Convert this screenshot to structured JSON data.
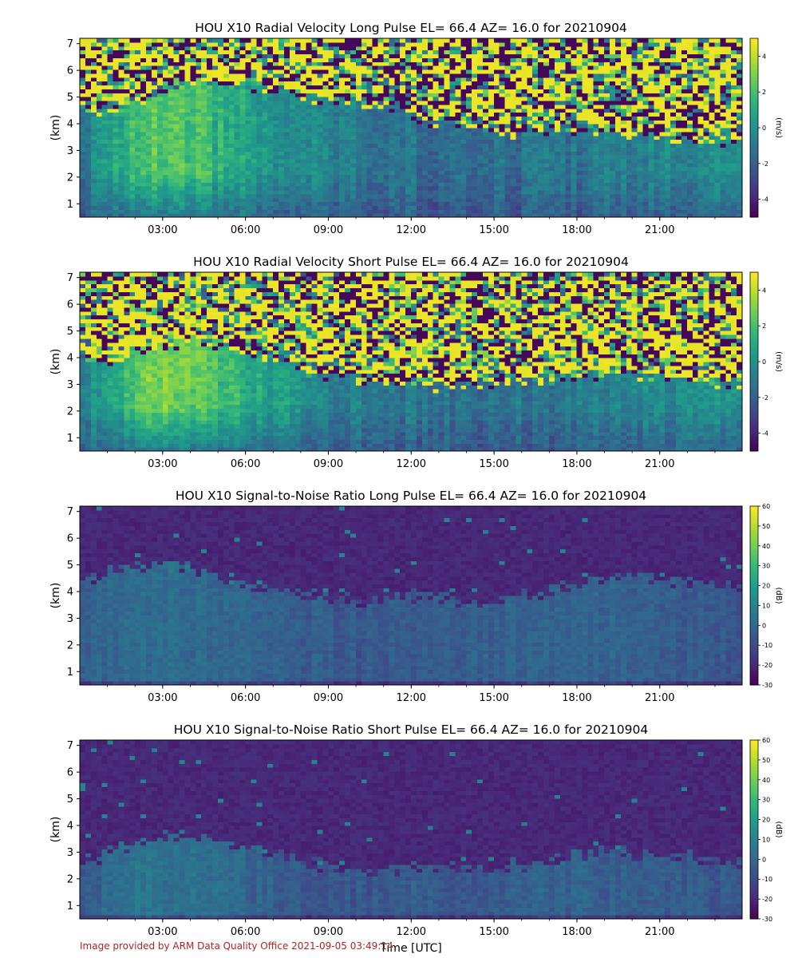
{
  "footer": "Image provided by ARM Data Quality Office 2021-09-05 03:49:14",
  "xlabel": "Time [UTC]",
  "chart_data": [
    {
      "type": "heatmap",
      "title": "HOU X10 Radial Velocity Long Pulse EL= 66.4 AZ= 16.0 for 20210904",
      "ylabel": "(km)",
      "colorbar_label": "(m/s)",
      "colormap": "viridis",
      "clim": [
        -5,
        5
      ],
      "colorbar_ticks": [
        -4,
        -2,
        0,
        2,
        4
      ],
      "xlim": [
        "00:00",
        "23:59"
      ],
      "ylim": [
        0.5,
        7.2
      ],
      "xticks": [
        "03:00",
        "06:00",
        "09:00",
        "12:00",
        "15:00",
        "18:00",
        "21:00"
      ],
      "yticks": [
        1,
        2,
        3,
        4,
        5,
        6,
        7
      ],
      "pattern": "velocity",
      "upper_boundary_km": [
        4.6,
        4.4,
        4.9,
        5.4,
        5.6,
        5.6,
        5.4,
        5.2,
        5.0,
        4.9,
        4.7,
        4.6,
        4.1,
        4.0,
        3.8,
        3.7,
        3.7,
        3.8,
        3.7,
        3.6,
        3.5,
        3.5,
        3.4,
        3.3
      ],
      "field_level": [
        -1.0,
        0.5,
        2.0,
        2.5,
        2.2,
        1.2,
        0.6,
        0.2,
        -0.2,
        -0.6,
        -1.0,
        -1.2,
        -1.3,
        -1.4,
        -1.5,
        -1.4,
        -1.3,
        -1.2,
        -1.0,
        -0.8,
        -0.6,
        -0.4,
        -0.2,
        0.0
      ]
    },
    {
      "type": "heatmap",
      "title": "HOU X10 Radial Velocity Short Pulse EL= 66.4 AZ= 16.0 for 20210904",
      "ylabel": "(km)",
      "colorbar_label": "(m/s)",
      "colormap": "viridis",
      "clim": [
        -5,
        5
      ],
      "colorbar_ticks": [
        -4,
        -2,
        0,
        2,
        4
      ],
      "xlim": [
        "00:00",
        "23:59"
      ],
      "ylim": [
        0.5,
        7.2
      ],
      "xticks": [
        "03:00",
        "06:00",
        "09:00",
        "12:00",
        "15:00",
        "18:00",
        "21:00"
      ],
      "yticks": [
        1,
        2,
        3,
        4,
        5,
        6,
        7
      ],
      "pattern": "velocity",
      "upper_boundary_km": [
        3.8,
        3.9,
        4.2,
        4.5,
        4.6,
        4.4,
        4.1,
        3.8,
        3.5,
        3.3,
        3.2,
        3.1,
        3.0,
        3.0,
        3.0,
        3.1,
        3.2,
        3.3,
        3.4,
        3.4,
        3.3,
        3.2,
        3.1,
        3.0
      ],
      "field_level": [
        -0.5,
        1.0,
        2.5,
        3.0,
        2.8,
        1.8,
        1.0,
        0.4,
        0.0,
        -0.5,
        -0.8,
        -1.0,
        -1.1,
        -1.2,
        -1.2,
        -1.1,
        -1.0,
        -0.9,
        -0.8,
        -0.6,
        -0.4,
        -0.2,
        0.0,
        0.2
      ]
    },
    {
      "type": "heatmap",
      "title": "HOU X10 Signal-to-Noise Ratio Long Pulse EL= 66.4 AZ= 16.0 for 20210904",
      "ylabel": "(km)",
      "colorbar_label": "(dB)",
      "colormap": "viridis",
      "clim": [
        -30,
        60
      ],
      "colorbar_ticks": [
        -30,
        -20,
        -10,
        0,
        10,
        20,
        30,
        40,
        50,
        60
      ],
      "xlim": [
        "00:00",
        "23:59"
      ],
      "ylim": [
        0.5,
        7.2
      ],
      "xticks": [
        "03:00",
        "06:00",
        "09:00",
        "12:00",
        "15:00",
        "18:00",
        "21:00"
      ],
      "yticks": [
        1,
        2,
        3,
        4,
        5,
        6,
        7
      ],
      "pattern": "snr",
      "upper_boundary_km": [
        4.5,
        4.8,
        5.0,
        5.0,
        4.8,
        4.5,
        4.2,
        4.0,
        3.8,
        3.7,
        3.6,
        3.8,
        4.0,
        3.7,
        3.6,
        3.8,
        4.0,
        4.2,
        4.5,
        4.6,
        4.5,
        4.4,
        4.3,
        4.2
      ],
      "field_level": [
        -5,
        0,
        2,
        2,
        1,
        0,
        -2,
        -3,
        -4,
        -5,
        -5,
        -4,
        -3,
        -4,
        -4,
        -3,
        -2,
        -1,
        -1,
        -2,
        -3,
        -4,
        -5,
        -6
      ]
    },
    {
      "type": "heatmap",
      "title": "HOU X10 Signal-to-Noise Ratio Short Pulse EL= 66.4 AZ= 16.0 for 20210904",
      "ylabel": "(km)",
      "colorbar_label": "(dB)",
      "colormap": "viridis",
      "clim": [
        -30,
        60
      ],
      "colorbar_ticks": [
        -30,
        -20,
        -10,
        0,
        10,
        20,
        30,
        40,
        50,
        60
      ],
      "xlim": [
        "00:00",
        "23:59"
      ],
      "ylim": [
        0.5,
        7.2
      ],
      "xticks": [
        "03:00",
        "06:00",
        "09:00",
        "12:00",
        "15:00",
        "18:00",
        "21:00"
      ],
      "yticks": [
        1,
        2,
        3,
        4,
        5,
        6,
        7
      ],
      "pattern": "snr",
      "upper_boundary_km": [
        2.6,
        3.0,
        3.4,
        3.6,
        3.6,
        3.4,
        3.1,
        2.8,
        2.6,
        2.4,
        2.3,
        2.4,
        2.6,
        2.4,
        2.4,
        2.5,
        2.6,
        2.8,
        3.0,
        3.0,
        2.9,
        2.8,
        2.7,
        2.6
      ],
      "field_level": [
        -8,
        2,
        5,
        4,
        3,
        1,
        -1,
        -3,
        -5,
        -6,
        -6,
        -5,
        -4,
        -5,
        -5,
        -4,
        -3,
        -2,
        -2,
        -3,
        -4,
        -5,
        -6,
        -7
      ]
    }
  ]
}
